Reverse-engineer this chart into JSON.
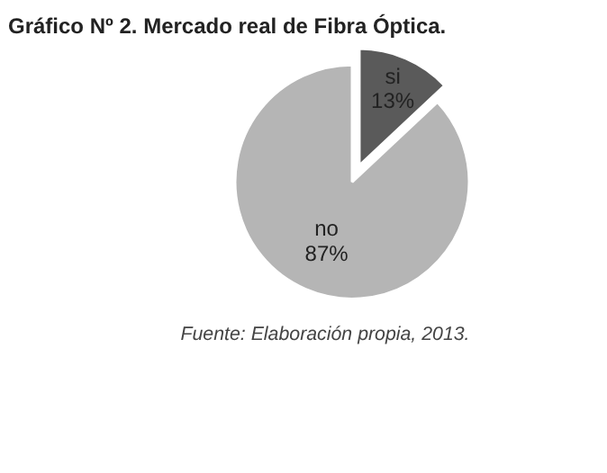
{
  "chart_data": {
    "type": "pie",
    "title": "Gráfico Nº 2. Mercado real de Fibra Óptica.",
    "categories": [
      "si",
      "no"
    ],
    "values": [
      13,
      87
    ],
    "colors": [
      "#5a5a5a",
      "#b5b5b5"
    ],
    "value_labels": [
      "13%",
      "87%"
    ],
    "annotations": [
      "Fuente: Elaboración propia, 2013."
    ]
  }
}
